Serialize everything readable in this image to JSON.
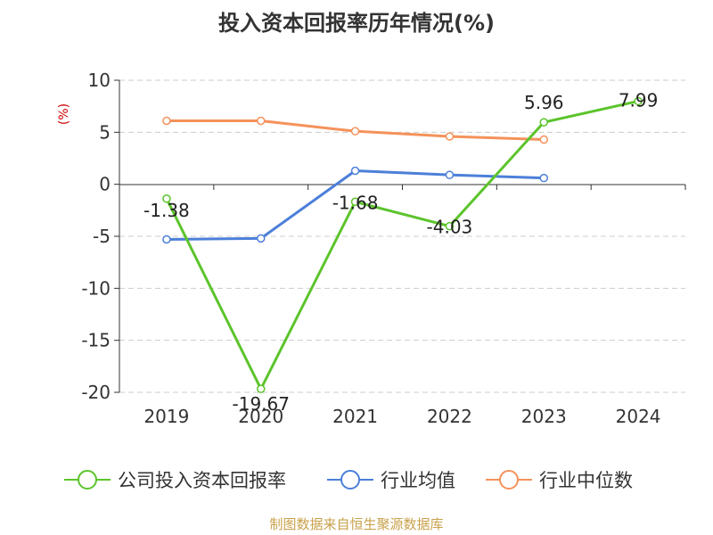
{
  "chart_data": {
    "type": "line",
    "title": "投入资本回报率历年情况(%)",
    "ylabel": "(%)",
    "xlabel": "",
    "categories": [
      "2019",
      "2020",
      "2021",
      "2022",
      "2023",
      "2024"
    ],
    "ylim": [
      -20,
      10
    ],
    "yticks": [
      10,
      5,
      0,
      -5,
      -10,
      -15,
      -20
    ],
    "grid": true,
    "legend_position": "bottom",
    "series": [
      {
        "name": "公司投入资本回报率",
        "color": "#5cc42c",
        "values": [
          -1.38,
          -19.67,
          -1.68,
          -4.03,
          5.96,
          7.99
        ],
        "labels": [
          "-1.38",
          "-19.67",
          "-1.68",
          "-4.03",
          "5.96",
          "7.99"
        ]
      },
      {
        "name": "行业均值",
        "color": "#4c7fd9",
        "values": [
          -5.3,
          -5.2,
          1.3,
          0.9,
          0.6,
          null
        ]
      },
      {
        "name": "行业中位数",
        "color": "#f5925a",
        "values": [
          6.1,
          6.1,
          5.1,
          4.6,
          4.3,
          null
        ]
      }
    ]
  },
  "colors": {
    "title": "#333333",
    "ylabel": "#cc0000",
    "footer": "#c9a14a",
    "grid": "#cccccc",
    "axis": "#333333",
    "tick_text": "#333333"
  },
  "footer": "制图数据来自恒生聚源数据库"
}
